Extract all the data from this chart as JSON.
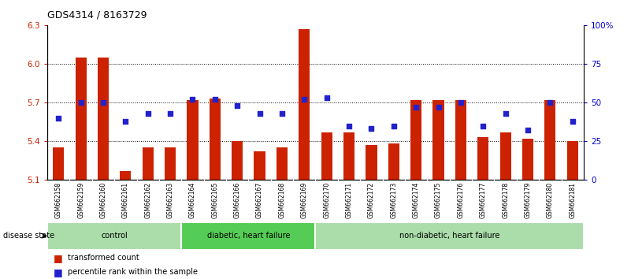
{
  "title": "GDS4314 / 8163729",
  "samples": [
    "GSM662158",
    "GSM662159",
    "GSM662160",
    "GSM662161",
    "GSM662162",
    "GSM662163",
    "GSM662164",
    "GSM662165",
    "GSM662166",
    "GSM662167",
    "GSM662168",
    "GSM662169",
    "GSM662170",
    "GSM662171",
    "GSM662172",
    "GSM662173",
    "GSM662174",
    "GSM662175",
    "GSM662176",
    "GSM662177",
    "GSM662178",
    "GSM662179",
    "GSM662180",
    "GSM662181"
  ],
  "bar_values": [
    5.35,
    6.05,
    6.05,
    5.17,
    5.35,
    5.35,
    5.72,
    5.73,
    5.4,
    5.32,
    5.35,
    6.27,
    5.47,
    5.47,
    5.37,
    5.38,
    5.72,
    5.72,
    5.72,
    5.43,
    5.47,
    5.42,
    5.72,
    5.4
  ],
  "percentile_values": [
    40,
    50,
    50,
    38,
    43,
    43,
    52,
    52,
    48,
    43,
    43,
    52,
    53,
    35,
    33,
    35,
    47,
    47,
    50,
    35,
    43,
    32,
    50,
    38
  ],
  "ylim_left": [
    5.1,
    6.3
  ],
  "ylim_right": [
    0,
    100
  ],
  "yticks_left": [
    5.1,
    5.4,
    5.7,
    6.0,
    6.3
  ],
  "yticks_right": [
    0,
    25,
    50,
    75,
    100
  ],
  "ytick_labels_left": [
    "5.1",
    "5.4",
    "5.7",
    "6.0",
    "6.3"
  ],
  "ytick_labels_right": [
    "0",
    "25",
    "50",
    "75",
    "100%"
  ],
  "groups": [
    {
      "label": "control",
      "start": 0,
      "end": 6,
      "color": "#aaddaa"
    },
    {
      "label": "diabetic, heart failure",
      "start": 6,
      "end": 12,
      "color": "#55cc55"
    },
    {
      "label": "non-diabetic, heart failure",
      "start": 12,
      "end": 24,
      "color": "#aaddaa"
    }
  ],
  "bar_color": "#cc2200",
  "dot_color": "#2222cc",
  "bar_bottom": 5.1,
  "legend_items": [
    {
      "label": "transformed count",
      "color": "#cc2200"
    },
    {
      "label": "percentile rank within the sample",
      "color": "#2222cc"
    }
  ],
  "disease_state_label": "disease state",
  "bg_color": "#ffffff",
  "plot_bg": "#ffffff",
  "label_bg": "#cccccc"
}
